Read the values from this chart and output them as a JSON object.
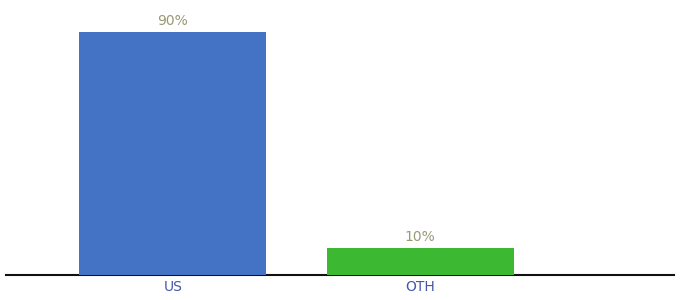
{
  "categories": [
    "US",
    "OTH"
  ],
  "values": [
    90,
    10
  ],
  "bar_colors": [
    "#4472c4",
    "#3cb832"
  ],
  "label_texts": [
    "90%",
    "10%"
  ],
  "background_color": "#ffffff",
  "axis_line_color": "#111111",
  "label_color": "#999977",
  "label_fontsize": 10,
  "tick_fontsize": 10,
  "ylim": [
    0,
    100
  ],
  "x_positions": [
    0.25,
    0.62
  ],
  "bar_width": 0.28,
  "xlim": [
    0.0,
    1.0
  ]
}
